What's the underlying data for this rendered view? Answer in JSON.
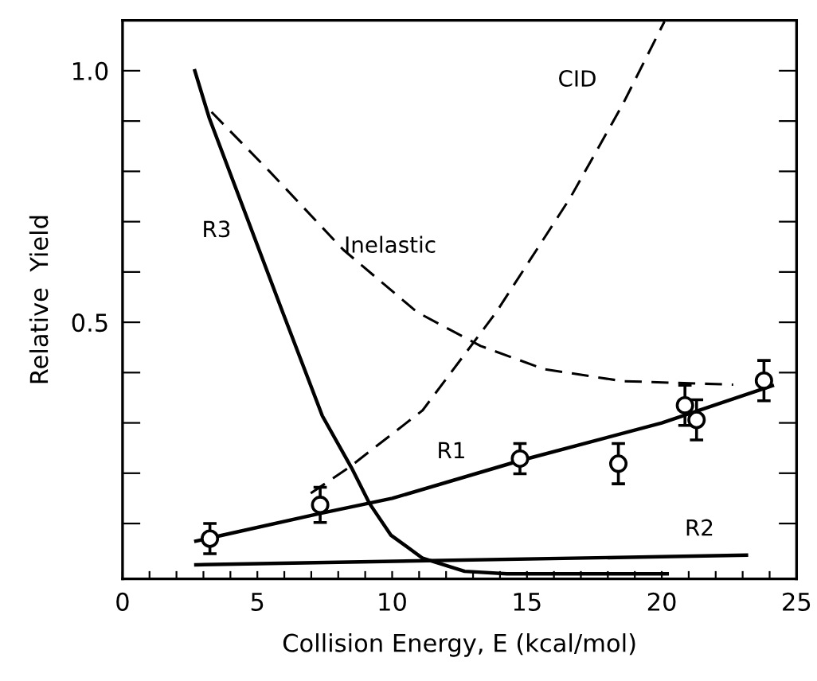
{
  "chart_data": {
    "type": "line",
    "xlabel": "Collision Energy, E (kcal/mol)",
    "ylabel": "Relative  Yield",
    "xlim": [
      0,
      25
    ],
    "ylim": [
      -0.01,
      1.1
    ],
    "xticks": [
      0,
      {
        "value": 1,
        "label": null
      },
      {
        "value": 2,
        "label": null
      },
      {
        "value": 3,
        "label": null
      },
      {
        "value": 4,
        "label": null
      },
      5,
      {
        "value": 6,
        "label": null
      },
      {
        "value": 7,
        "label": null
      },
      {
        "value": 8,
        "label": null
      },
      {
        "value": 9,
        "label": null
      },
      10,
      {
        "value": 11,
        "label": null
      },
      {
        "value": 12,
        "label": null
      },
      {
        "value": 13,
        "label": null
      },
      {
        "value": 14,
        "label": null
      },
      15,
      {
        "value": 16,
        "label": null
      },
      {
        "value": 17,
        "label": null
      },
      {
        "value": 18,
        "label": null
      },
      {
        "value": 19,
        "label": null
      },
      20,
      {
        "value": 21,
        "label": null
      },
      {
        "value": 22,
        "label": null
      },
      {
        "value": 23,
        "label": null
      },
      {
        "value": 24,
        "label": null
      },
      25
    ],
    "yticks": [
      {
        "value": 0.1,
        "label": null
      },
      {
        "value": 0.2,
        "label": null
      },
      {
        "value": 0.3,
        "label": null
      },
      {
        "value": 0.4,
        "label": null
      },
      0.5,
      {
        "value": 0.6,
        "label": null
      },
      {
        "value": 0.7,
        "label": null
      },
      {
        "value": 0.8,
        "label": null
      },
      {
        "value": 0.9,
        "label": null
      },
      {
        "value": 1.0,
        "label": "1.0"
      }
    ],
    "grid": false,
    "legend": false,
    "series": [
      {
        "type": "scatter",
        "color": "#000000",
        "marker": "circle",
        "x": [
          3.24,
          7.33,
          14.74,
          18.39,
          20.86,
          21.29,
          23.79
        ],
        "values": [
          0.07,
          0.137,
          0.229,
          0.219,
          0.335,
          0.306,
          0.384
        ],
        "errors": [
          0.03,
          0.035,
          0.03,
          0.04,
          0.04,
          0.04,
          0.04
        ]
      },
      {
        "name": "R1",
        "color": "#000000",
        "line_style": "solid",
        "x": [
          2.72,
          7.33,
          10,
          14.74,
          20,
          24.1
        ],
        "values": [
          0.065,
          0.12,
          0.15,
          0.225,
          0.3,
          0.374
        ]
      },
      {
        "name": "R2",
        "color": "#000000",
        "line_style": "solid",
        "x": [
          2.72,
          23.14
        ],
        "values": [
          0.018,
          0.037
        ]
      },
      {
        "name": "R3",
        "color": "#000000",
        "line_style": "solid",
        "x": [
          2.68,
          3.21,
          5.94,
          7.41,
          8.49,
          9.17,
          9.95,
          11.13,
          12.69,
          14.25,
          20.2
        ],
        "values": [
          1.0,
          0.907,
          0.52,
          0.314,
          0.211,
          0.139,
          0.077,
          0.031,
          0.005,
          0.0,
          0.0
        ]
      },
      {
        "name": "Inelastic",
        "color": "#000000",
        "line_style": "dashed",
        "x": [
          3.3,
          5.45,
          8.19,
          10.93,
          13.28,
          15.62,
          18.55,
          22.65
        ],
        "values": [
          0.918,
          0.8,
          0.644,
          0.52,
          0.453,
          0.407,
          0.383,
          0.376
        ]
      },
      {
        "name": "CID",
        "color": "#000000",
        "line_style": "dashed",
        "x": [
          6.98,
          8.39,
          11.13,
          13.86,
          16.6,
          18.55,
          20.1
        ],
        "values": [
          0.16,
          0.211,
          0.325,
          0.52,
          0.747,
          0.933,
          1.098
        ]
      }
    ]
  }
}
